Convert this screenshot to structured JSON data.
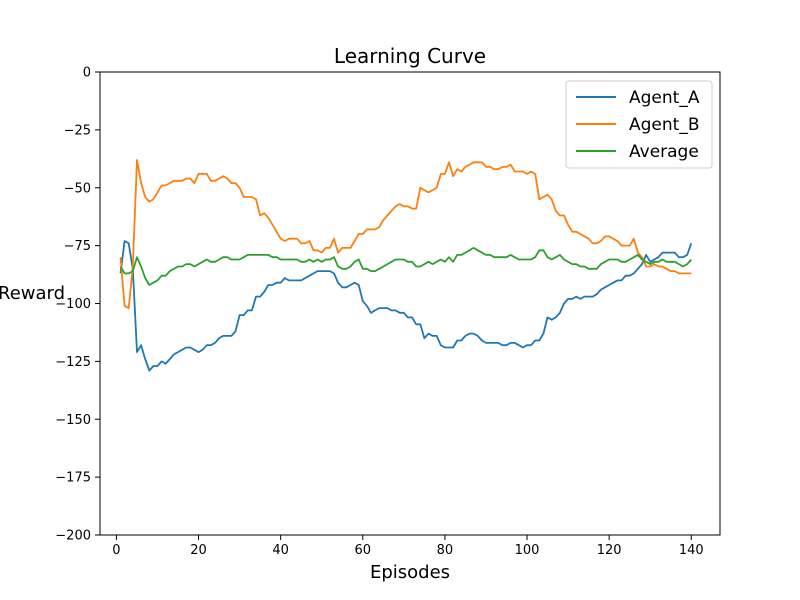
{
  "chart_data": {
    "type": "line",
    "title": "Learning Curve",
    "xlabel": "Episodes",
    "ylabel": "Reward",
    "xlim": [
      -4,
      147
    ],
    "ylim": [
      -200,
      0
    ],
    "xticks": [
      0,
      20,
      40,
      60,
      80,
      100,
      120,
      140
    ],
    "yticks": [
      0,
      -25,
      -50,
      -75,
      -100,
      -125,
      -150,
      -175,
      -200
    ],
    "grid": false,
    "legend_position": "top-right",
    "x": [
      1,
      2,
      3,
      4,
      5,
      6,
      7,
      8,
      9,
      10,
      11,
      12,
      13,
      14,
      15,
      16,
      17,
      18,
      19,
      20,
      21,
      22,
      23,
      24,
      25,
      26,
      27,
      28,
      29,
      30,
      31,
      32,
      33,
      34,
      35,
      36,
      37,
      38,
      39,
      40,
      41,
      42,
      43,
      44,
      45,
      46,
      47,
      48,
      49,
      50,
      51,
      52,
      53,
      54,
      55,
      56,
      57,
      58,
      59,
      60,
      61,
      62,
      63,
      64,
      65,
      66,
      67,
      68,
      69,
      70,
      71,
      72,
      73,
      74,
      75,
      76,
      77,
      78,
      79,
      80,
      81,
      82,
      83,
      84,
      85,
      86,
      87,
      88,
      89,
      90,
      91,
      92,
      93,
      94,
      95,
      96,
      97,
      98,
      99,
      100,
      101,
      102,
      103,
      104,
      105,
      106,
      107,
      108,
      109,
      110,
      111,
      112,
      113,
      114,
      115,
      116,
      117,
      118,
      119,
      120,
      121,
      122,
      123,
      124,
      125,
      126,
      127,
      128,
      129,
      130,
      131,
      132,
      133,
      134,
      135,
      136,
      137,
      138,
      139,
      140
    ],
    "series": [
      {
        "name": "Agent_A",
        "color": "#1f77b4",
        "values": [
          -87,
          -73,
          -74,
          -85,
          -121,
          -118,
          -124,
          -129,
          -127,
          -127,
          -125,
          -126,
          -124,
          -122,
          -121,
          -120,
          -119,
          -119,
          -120,
          -121,
          -120,
          -118,
          -118,
          -117,
          -115,
          -114,
          -114,
          -114,
          -112,
          -105,
          -105,
          -103,
          -103,
          -97,
          -97,
          -95,
          -92,
          -92,
          -91,
          -91,
          -89,
          -90,
          -90,
          -90,
          -90,
          -89,
          -88,
          -87,
          -86,
          -86,
          -86,
          -86,
          -87,
          -91,
          -93,
          -93,
          -92,
          -91,
          -92,
          -99,
          -101,
          -104,
          -103,
          -102,
          -102,
          -102,
          -103,
          -103,
          -104,
          -104,
          -106,
          -106,
          -109,
          -109,
          -115,
          -113,
          -114,
          -114,
          -118,
          -119,
          -119,
          -119,
          -116,
          -116,
          -114,
          -113,
          -113,
          -114,
          -116,
          -117,
          -117,
          -117,
          -117,
          -118,
          -118,
          -117,
          -117,
          -118,
          -119,
          -118,
          -118,
          -116,
          -116,
          -113,
          -106,
          -107,
          -106,
          -104,
          -100,
          -98,
          -98,
          -97,
          -98,
          -97,
          -97,
          -97,
          -96,
          -94,
          -93,
          -92,
          -91,
          -90,
          -90,
          -88,
          -88,
          -87,
          -85,
          -83,
          -79,
          -82,
          -81,
          -80,
          -78,
          -78,
          -78,
          -78,
          -80,
          -80,
          -79,
          -74
        ]
      },
      {
        "name": "Agent_B",
        "color": "#ff7f0e",
        "values": [
          -80,
          -101,
          -102,
          -84,
          -38,
          -48,
          -54,
          -56,
          -55,
          -52,
          -49,
          -49,
          -48,
          -47,
          -47,
          -47,
          -46,
          -46,
          -48,
          -44,
          -44,
          -44,
          -47,
          -47,
          -46,
          -45,
          -46,
          -48,
          -48,
          -50,
          -54,
          -54,
          -54,
          -55,
          -62,
          -61,
          -63,
          -66,
          -69,
          -72,
          -73,
          -72,
          -72,
          -72,
          -74,
          -74,
          -73,
          -77,
          -77,
          -78,
          -76,
          -76,
          -72,
          -78,
          -76,
          -76,
          -76,
          -73,
          -70,
          -70,
          -68,
          -68,
          -68,
          -67,
          -64,
          -62,
          -60,
          -58,
          -57,
          -58,
          -58,
          -59,
          -59,
          -50,
          -51,
          -52,
          -51,
          -50,
          -44,
          -44,
          -39,
          -45,
          -42,
          -43,
          -41,
          -40,
          -39,
          -39,
          -39,
          -41,
          -41,
          -42,
          -42,
          -41,
          -41,
          -40,
          -43,
          -43,
          -43,
          -44,
          -43,
          -44,
          -55,
          -54,
          -53,
          -55,
          -60,
          -62,
          -62,
          -66,
          -69,
          -69,
          -70,
          -71,
          -72,
          -74,
          -74,
          -73,
          -71,
          -71,
          -72,
          -73,
          -75,
          -75,
          -75,
          -72,
          -78,
          -80,
          -84,
          -84,
          -83,
          -84,
          -84,
          -85,
          -86,
          -86,
          -87,
          -87,
          -87,
          -87
        ]
      },
      {
        "name": "Average",
        "color": "#2ca02c",
        "values": [
          -84,
          -87,
          -87,
          -86,
          -80,
          -84,
          -89,
          -92,
          -91,
          -90,
          -88,
          -88,
          -86,
          -85,
          -84,
          -84,
          -83,
          -83,
          -84,
          -83,
          -82,
          -81,
          -82,
          -82,
          -81,
          -80,
          -80,
          -81,
          -81,
          -81,
          -80,
          -79,
          -79,
          -79,
          -79,
          -79,
          -79,
          -80,
          -80,
          -81,
          -81,
          -81,
          -81,
          -81,
          -82,
          -82,
          -81,
          -82,
          -81,
          -82,
          -81,
          -81,
          -80,
          -84,
          -85,
          -85,
          -84,
          -82,
          -81,
          -85,
          -85,
          -86,
          -86,
          -85,
          -84,
          -83,
          -82,
          -81,
          -81,
          -81,
          -82,
          -82,
          -84,
          -84,
          -83,
          -82,
          -83,
          -82,
          -81,
          -82,
          -80,
          -82,
          -79,
          -79,
          -78,
          -77,
          -76,
          -77,
          -78,
          -79,
          -79,
          -80,
          -80,
          -80,
          -80,
          -79,
          -80,
          -81,
          -81,
          -81,
          -81,
          -80,
          -77,
          -77,
          -80,
          -81,
          -80,
          -79,
          -81,
          -82,
          -83,
          -83,
          -84,
          -84,
          -85,
          -85,
          -85,
          -83,
          -82,
          -81,
          -81,
          -81,
          -82,
          -82,
          -81,
          -80,
          -79,
          -81,
          -82,
          -83,
          -82,
          -82,
          -81,
          -82,
          -82,
          -82,
          -83,
          -84,
          -83,
          -81
        ]
      }
    ]
  }
}
